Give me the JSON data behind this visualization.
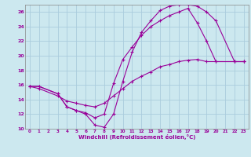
{
  "xlabel": "Windchill (Refroidissement éolien,°C)",
  "bg_color": "#cce8ef",
  "grid_color": "#aaccdd",
  "line_color": "#990099",
  "xlim": [
    -0.5,
    23.5
  ],
  "ylim": [
    10,
    27
  ],
  "xticks": [
    0,
    1,
    2,
    3,
    4,
    5,
    6,
    7,
    8,
    9,
    10,
    11,
    12,
    13,
    14,
    15,
    16,
    17,
    18,
    19,
    20,
    21,
    22,
    23
  ],
  "yticks": [
    10,
    12,
    14,
    16,
    18,
    20,
    22,
    24,
    26
  ],
  "line1_x": [
    0,
    1,
    3,
    4,
    5,
    6,
    7,
    8,
    9,
    10,
    11,
    12,
    13,
    14,
    15,
    16,
    17,
    18,
    19,
    20,
    22,
    23
  ],
  "line1_y": [
    15.8,
    15.8,
    14.8,
    13.0,
    12.5,
    12.0,
    10.5,
    10.2,
    12.0,
    16.5,
    20.5,
    23.2,
    24.8,
    26.2,
    26.8,
    27.0,
    27.0,
    26.8,
    26.0,
    24.8,
    19.2,
    19.2
  ],
  "line2_x": [
    0,
    1,
    3,
    4,
    5,
    6,
    7,
    8,
    9,
    10,
    11,
    12,
    13,
    14,
    15,
    16,
    17,
    18,
    19,
    20,
    22,
    23
  ],
  "line2_y": [
    15.8,
    15.8,
    14.8,
    13.0,
    12.5,
    12.2,
    11.5,
    12.0,
    16.2,
    19.5,
    21.2,
    22.8,
    24.0,
    24.8,
    25.5,
    26.0,
    26.5,
    24.5,
    22.0,
    19.2,
    19.2,
    19.2
  ],
  "line3_x": [
    0,
    1,
    3,
    4,
    5,
    6,
    7,
    8,
    9,
    10,
    11,
    12,
    13,
    14,
    15,
    16,
    17,
    18,
    19,
    20,
    22,
    23
  ],
  "line3_y": [
    15.8,
    15.5,
    14.5,
    13.8,
    13.5,
    13.2,
    13.0,
    13.5,
    14.5,
    15.5,
    16.5,
    17.2,
    17.8,
    18.5,
    18.8,
    19.2,
    19.4,
    19.5,
    19.2,
    19.2,
    19.2,
    19.2
  ]
}
